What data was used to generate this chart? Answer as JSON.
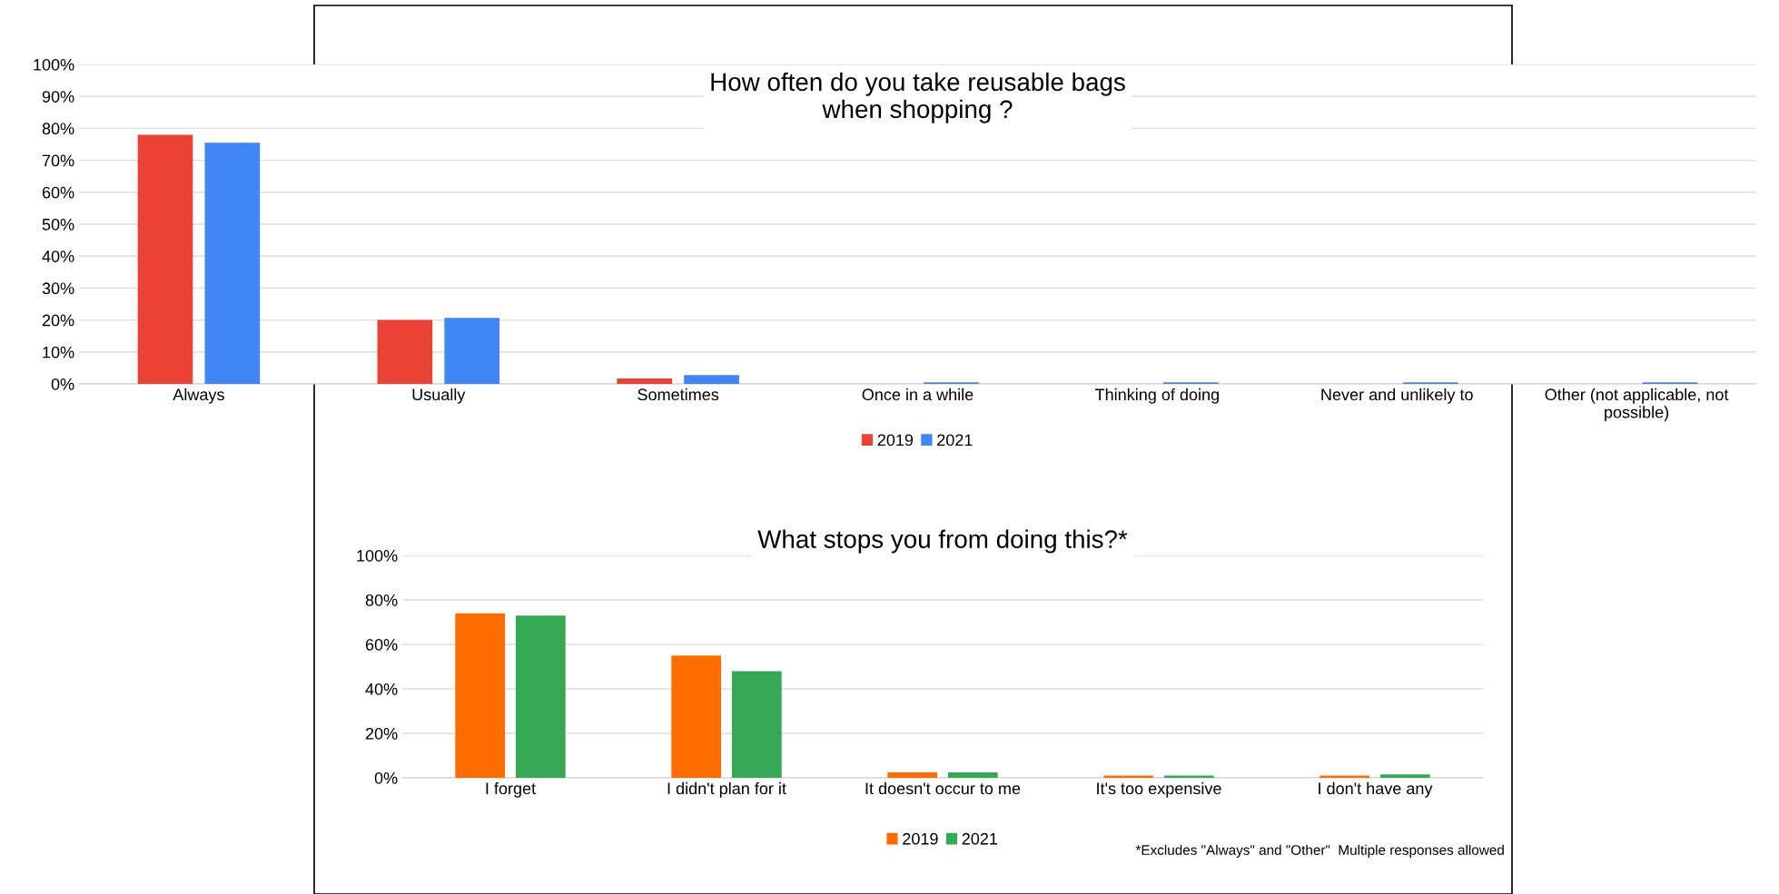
{
  "chart_data": [
    {
      "type": "bar",
      "title": "How often do you take reusable bags\nwhen shopping ?",
      "categories": [
        "Always",
        "Usually",
        "Sometimes",
        "Once in a while",
        "Thinking of doing",
        "Never and unlikely to",
        "Other (not applicable, not\npossible)"
      ],
      "series": [
        {
          "name": "2019",
          "color": "#ea4335",
          "values": [
            78,
            20,
            1.7,
            0,
            0,
            0,
            0
          ]
        },
        {
          "name": "2021",
          "color": "#4285f4",
          "values": [
            75.5,
            20.7,
            2.8,
            0.5,
            0.5,
            0.5,
            0.5
          ]
        }
      ],
      "ylim": [
        0,
        100
      ],
      "yticks": [
        {
          "value": 0,
          "label": "0%"
        },
        {
          "value": 10,
          "label": "10%"
        },
        {
          "value": 20,
          "label": "20%"
        },
        {
          "value": 30,
          "label": "30%"
        },
        {
          "value": 40,
          "label": "40%"
        },
        {
          "value": 50,
          "label": "50%"
        },
        {
          "value": 60,
          "label": "60%"
        },
        {
          "value": 70,
          "label": "70%"
        },
        {
          "value": 80,
          "label": "80%"
        },
        {
          "value": 90,
          "label": "90%"
        },
        {
          "value": 100,
          "label": "100%"
        }
      ],
      "grid": "y",
      "legend": "bottom"
    },
    {
      "type": "bar",
      "title": "What stops you from doing this?*",
      "categories": [
        "I forget",
        "I didn't plan for it",
        "It doesn't occur to me",
        "It's too expensive",
        "I don't have any"
      ],
      "series": [
        {
          "name": "2019",
          "color": "#ff6d01",
          "values": [
            74,
            55,
            2.5,
            1,
            1
          ]
        },
        {
          "name": "2021",
          "color": "#34a853",
          "values": [
            73,
            48,
            2.5,
            1,
            1.5
          ]
        }
      ],
      "ylim": [
        0,
        100
      ],
      "yticks": [
        {
          "value": 0,
          "label": "0%"
        },
        {
          "value": 20,
          "label": "20%"
        },
        {
          "value": 40,
          "label": "40%"
        },
        {
          "value": 60,
          "label": "60%"
        },
        {
          "value": 80,
          "label": "80%"
        },
        {
          "value": 100,
          "label": "100%"
        }
      ],
      "grid": "y",
      "legend": "bottom",
      "annotations": [
        "*Excludes \"Always\" and \"Other\"  Multiple responses allowed"
      ]
    }
  ]
}
